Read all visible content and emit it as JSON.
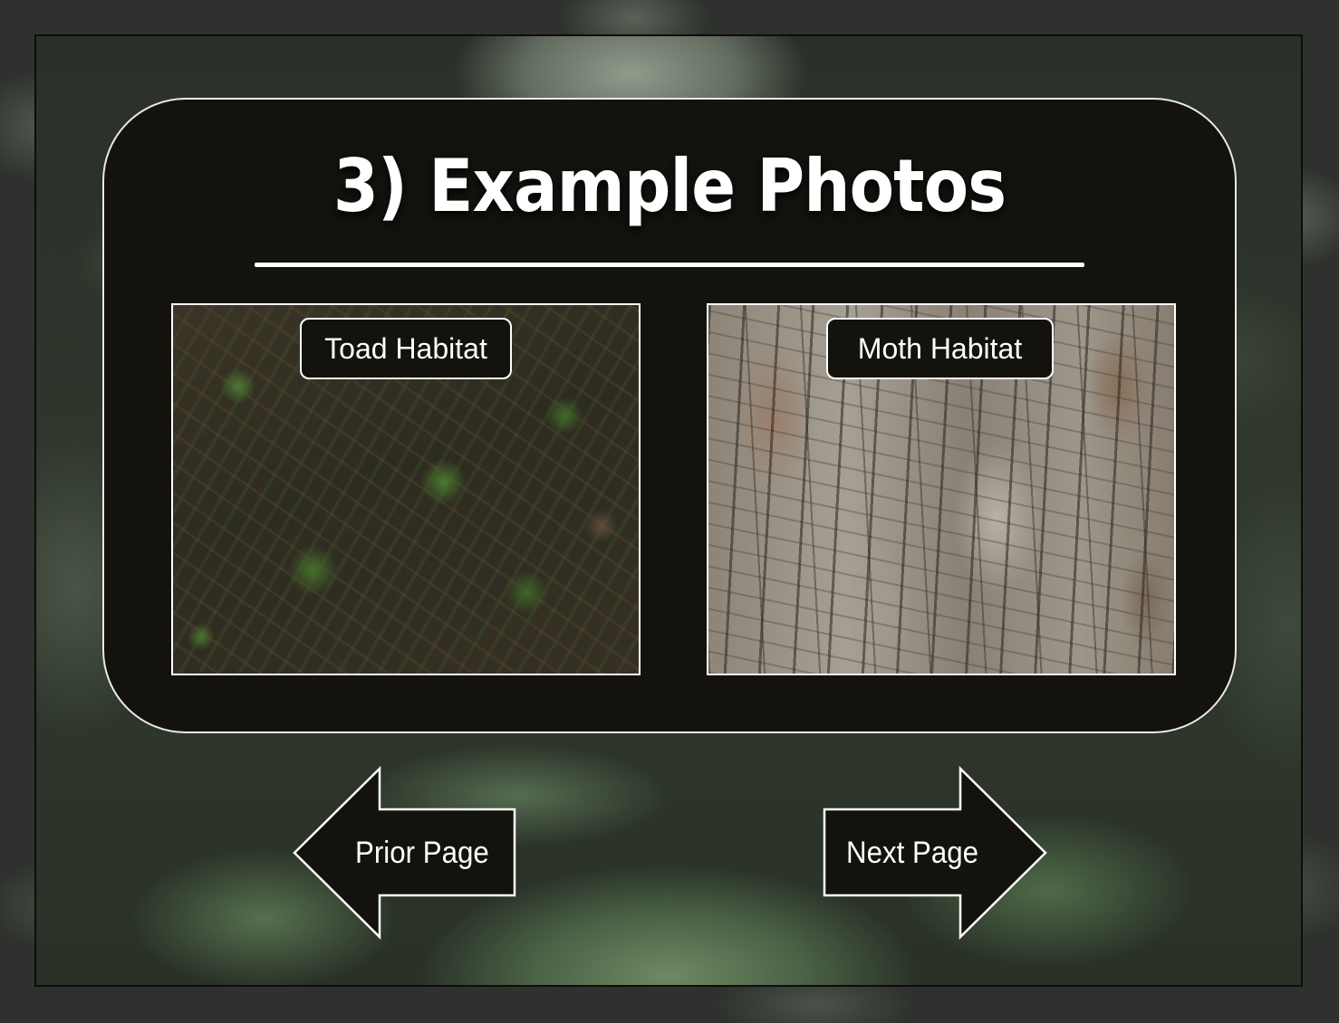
{
  "title": "3) Example Photos",
  "photos": [
    {
      "label": "Toad Habitat",
      "image": "soil-with-moss-and-leaves"
    },
    {
      "label": "Moth Habitat",
      "image": "tree-bark-texture"
    }
  ],
  "nav": {
    "prior_label": "Prior Page",
    "next_label": "Next Page",
    "prior_icon": "left-arrow-icon",
    "next_icon": "right-arrow-icon"
  },
  "colors": {
    "panel": "#13120d",
    "outline": "#ffffff",
    "text": "#ffffff"
  }
}
